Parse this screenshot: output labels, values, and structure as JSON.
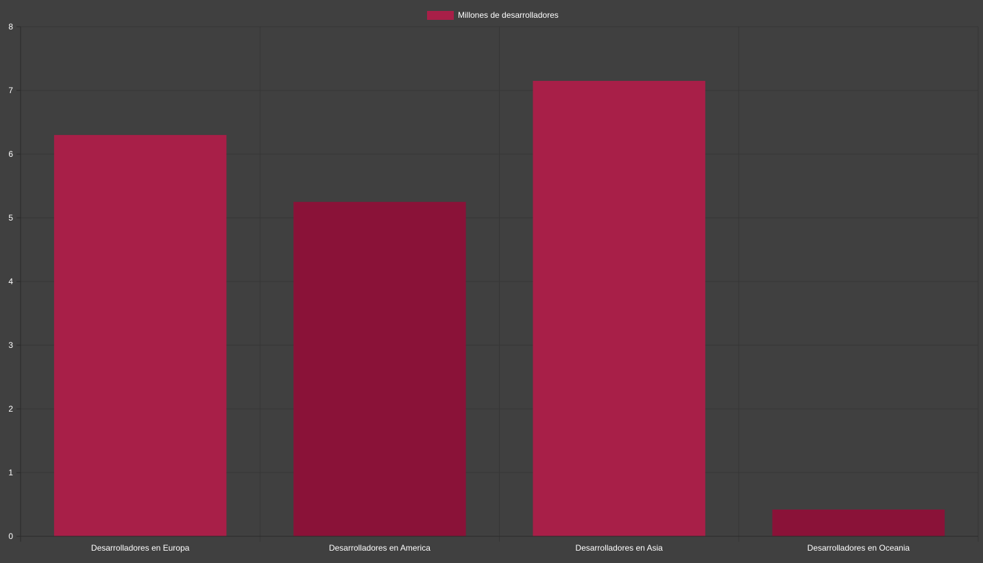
{
  "colors": {
    "background": "#404040",
    "grid": "#363636",
    "axis": "#2a2a2a",
    "text": "#ffffff",
    "bar_light": "#a81f48",
    "bar_dark": "#8a1238"
  },
  "chart_data": {
    "type": "bar",
    "categories": [
      "Desarrolladores en Europa",
      "Desarrolladores en America",
      "Desarrolladores en Asia",
      "Desarrolladores en Oceania"
    ],
    "series": [
      {
        "name": "Millones de desarrolladores",
        "values": [
          6.3,
          5.25,
          7.15,
          0.42
        ],
        "bar_colors": [
          "#a81f48",
          "#8a1238",
          "#a81f48",
          "#8a1238"
        ]
      }
    ],
    "ylim": [
      0,
      8
    ],
    "yticks": [
      "0",
      "1",
      "2",
      "3",
      "4",
      "5",
      "6",
      "7",
      "8"
    ],
    "grid": true,
    "legend": "top-center"
  }
}
